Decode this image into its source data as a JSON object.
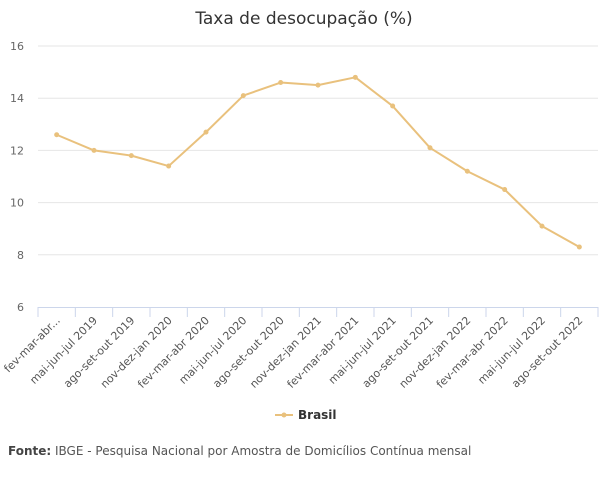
{
  "chart_data": {
    "type": "line",
    "title": "Taxa de desocupação (%)",
    "xlabel": "",
    "ylabel": "",
    "ylim": [
      6,
      16
    ],
    "yticks": [
      6,
      8,
      10,
      12,
      14,
      16
    ],
    "grid": true,
    "legend_position": "bottom-center",
    "categories": [
      "fev-mar-abr...",
      "mai-jun-jul 2019",
      "ago-set-out 2019",
      "nov-dez-jan 2020",
      "fev-mar-abr 2020",
      "mai-jun-jul 2020",
      "ago-set-out 2020",
      "nov-dez-jan 2021",
      "fev-mar-abr 2021",
      "mai-jun-jul 2021",
      "ago-set-out 2021",
      "nov-dez-jan 2022",
      "fev-mar-abr 2022",
      "mai-jun-jul 2022",
      "ago-set-out 2022"
    ],
    "series": [
      {
        "name": "Brasil",
        "color": "#e9c17d",
        "values": [
          12.6,
          12.0,
          11.8,
          11.4,
          12.7,
          14.1,
          14.6,
          14.5,
          14.8,
          13.7,
          12.1,
          11.2,
          10.5,
          9.1,
          8.3
        ]
      }
    ]
  },
  "source": {
    "label": "Fonte:",
    "text": "IBGE - Pesquisa Nacional por Amostra de Domicílios Contínua mensal"
  }
}
